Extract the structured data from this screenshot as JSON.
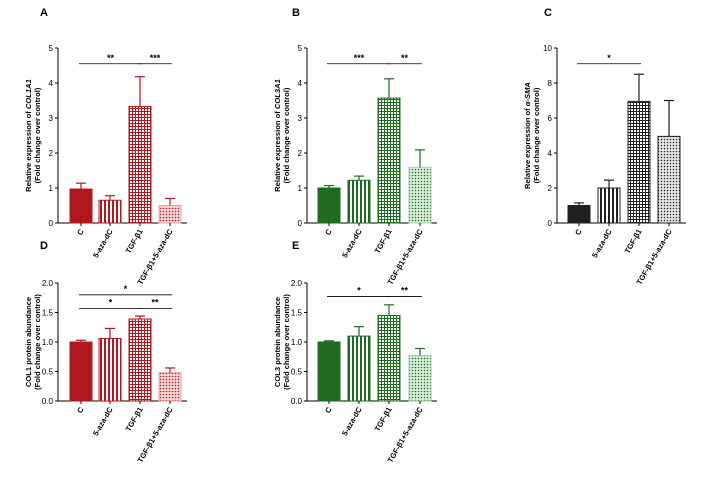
{
  "colors": {
    "red": "#b01820",
    "green": "#1f6b22",
    "dark": "#202020",
    "light_red": "#e8a0a4",
    "light_green": "#9ad19c"
  },
  "chart_data": [
    {
      "type": "bar",
      "panel": "A",
      "ylabel": [
        "Relative expression of COL1A1",
        "(Fold change over control)"
      ],
      "ylabel_italic": "COL1A1",
      "categories": [
        "C",
        "5-aza-dC",
        "TGF-β1",
        "TGF-β1+5-aza-dC"
      ],
      "values": [
        0.97,
        0.65,
        3.33,
        0.5
      ],
      "errors": [
        0.17,
        0.13,
        0.85,
        0.2
      ],
      "ylim": [
        0,
        5
      ],
      "yticks": [
        0,
        1,
        2,
        3,
        4,
        5
      ],
      "significance": [
        {
          "from": 0,
          "to": 2,
          "label": "**",
          "y": 4.55
        },
        {
          "from": 2,
          "to": 3,
          "label": "***",
          "y": 4.55
        }
      ],
      "bar_styles": [
        "solid",
        "vstripe",
        "grid",
        "dots"
      ],
      "bar_colors": [
        "red",
        "red",
        "red",
        "light_red"
      ]
    },
    {
      "type": "bar",
      "panel": "B",
      "ylabel": [
        "Relative expression of COL3A1",
        "(Fold change over control)"
      ],
      "ylabel_italic": "COL3A1",
      "categories": [
        "C",
        "5-aza-dC",
        "TGF-β1",
        "TGF-β1+5-aza-dC"
      ],
      "values": [
        1.0,
        1.22,
        3.57,
        1.59
      ],
      "errors": [
        0.07,
        0.12,
        0.55,
        0.5
      ],
      "ylim": [
        0,
        5
      ],
      "yticks": [
        0,
        1,
        2,
        3,
        4,
        5
      ],
      "significance": [
        {
          "from": 0,
          "to": 2,
          "label": "***",
          "y": 4.55
        },
        {
          "from": 2,
          "to": 3,
          "label": "**",
          "y": 4.55
        }
      ],
      "bar_styles": [
        "solid",
        "vstripe",
        "grid",
        "dots"
      ],
      "bar_colors": [
        "green",
        "green",
        "green",
        "light_green"
      ]
    },
    {
      "type": "bar",
      "panel": "C",
      "ylabel": [
        "Relative expression of α-SMA",
        "(Fold change over control)"
      ],
      "ylabel_italic": "α-SMA",
      "categories": [
        "C",
        "5-aza-dC",
        "TGF-β1",
        "TGF-β1+5-aza-dC"
      ],
      "values": [
        1.0,
        2.0,
        6.95,
        4.95
      ],
      "errors": [
        0.15,
        0.45,
        1.55,
        2.05
      ],
      "ylim": [
        0,
        10
      ],
      "yticks": [
        0,
        2,
        4,
        6,
        8,
        10
      ],
      "significance": [
        {
          "from": 0,
          "to": 2,
          "label": "*",
          "y": 9.1
        }
      ],
      "bar_styles": [
        "solid",
        "vstripe",
        "grid",
        "dots"
      ],
      "bar_colors": [
        "dark",
        "dark",
        "dark",
        "dark"
      ]
    },
    {
      "type": "bar",
      "panel": "D",
      "ylabel": [
        "COL1 protein abundance",
        "(Fold change over control)"
      ],
      "ylabel_italic": "",
      "categories": [
        "C",
        "5-aza-dC",
        "TGF-β1",
        "TGF-β1+5-aza-dC"
      ],
      "values": [
        1.0,
        1.06,
        1.39,
        0.48
      ],
      "errors": [
        0.03,
        0.17,
        0.05,
        0.08
      ],
      "ylim": [
        0,
        2.0
      ],
      "yticks": [
        0,
        0.5,
        1.0,
        1.5,
        2.0
      ],
      "ytick_labels": [
        "0.0",
        "0.5",
        "1.0",
        "1.5",
        "2.0"
      ],
      "significance": [
        {
          "from": 0,
          "to": 3,
          "label": "*",
          "y": 1.8
        },
        {
          "from": 0,
          "to": 2,
          "label": "*",
          "y": 1.57
        },
        {
          "from": 2,
          "to": 3,
          "label": "**",
          "y": 1.57
        }
      ],
      "bar_styles": [
        "solid",
        "vstripe",
        "grid",
        "dots"
      ],
      "bar_colors": [
        "red",
        "red",
        "red",
        "light_red"
      ]
    },
    {
      "type": "bar",
      "panel": "E",
      "ylabel": [
        "COL3 protein abundance",
        "(Fold change over control)"
      ],
      "ylabel_italic": "",
      "categories": [
        "C",
        "5-aza-dC",
        "TGF-β1",
        "TGF-β1+5-aza-dC"
      ],
      "values": [
        1.0,
        1.1,
        1.45,
        0.77
      ],
      "errors": [
        0.02,
        0.16,
        0.18,
        0.12
      ],
      "ylim": [
        0,
        2.0
      ],
      "yticks": [
        0,
        0.5,
        1.0,
        1.5,
        2.0
      ],
      "ytick_labels": [
        "0.0",
        "0.5",
        "1.0",
        "1.5",
        "2.0"
      ],
      "significance": [
        {
          "from": 0,
          "to": 2,
          "label": "*",
          "y": 1.77
        },
        {
          "from": 2,
          "to": 3,
          "label": "**",
          "y": 1.77
        }
      ],
      "bar_styles": [
        "solid",
        "vstripe",
        "grid",
        "dots"
      ],
      "bar_colors": [
        "green",
        "green",
        "green",
        "light_green"
      ]
    }
  ]
}
